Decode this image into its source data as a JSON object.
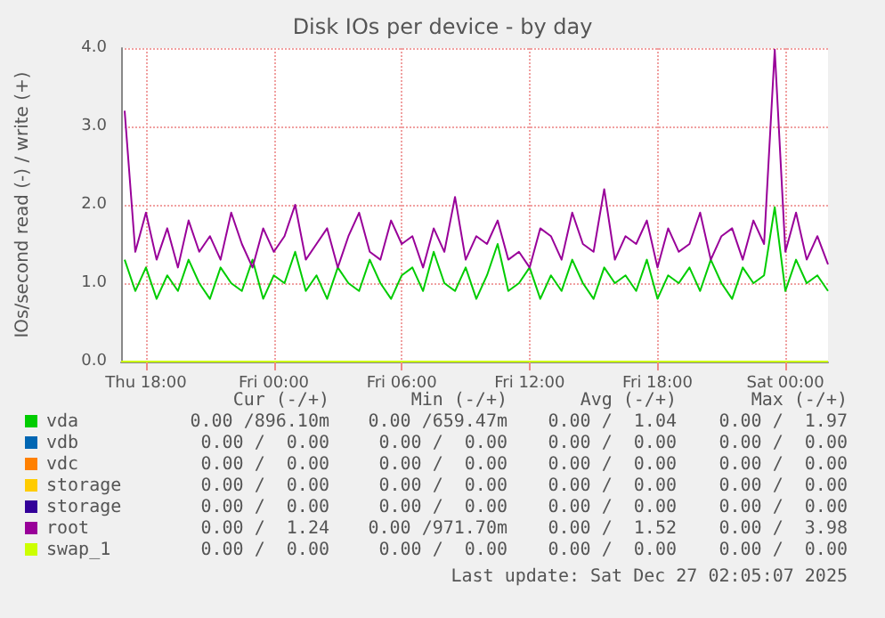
{
  "chart_data": {
    "type": "line",
    "title": "Disk IOs per device - by day",
    "ylabel": "IOs/second read (-) / write (+)",
    "xlim": [
      "2025-12-25T16:50",
      "2025-12-27T02:00"
    ],
    "xticks": [
      {
        "value": "2025-12-25T18:00",
        "label": "Thu 18:00"
      },
      {
        "value": "2025-12-26T00:00",
        "label": "Fri 00:00"
      },
      {
        "value": "2025-12-26T06:00",
        "label": "Fri 06:00"
      },
      {
        "value": "2025-12-26T12:00",
        "label": "Fri 12:00"
      },
      {
        "value": "2025-12-26T18:00",
        "label": "Fri 18:00"
      },
      {
        "value": "2025-12-27T00:00",
        "label": "Sat 00:00"
      }
    ],
    "ylim": [
      0,
      4
    ],
    "yticks": [
      {
        "value": 0,
        "label": "0.0"
      },
      {
        "value": 1,
        "label": "1.0"
      },
      {
        "value": 2,
        "label": "2.0"
      },
      {
        "value": 3,
        "label": "3.0"
      },
      {
        "value": 4,
        "label": "4.0"
      }
    ],
    "grid": true,
    "legend": "bottom",
    "marker": "none",
    "line_style": "solid",
    "series": [
      {
        "name": "vda",
        "color": "#00cc00",
        "x": [
          "2025-12-25T17:00",
          "2025-12-25T17:30",
          "2025-12-25T18:00",
          "2025-12-25T18:30",
          "2025-12-25T19:00",
          "2025-12-25T19:30",
          "2025-12-25T20:00",
          "2025-12-25T20:30",
          "2025-12-25T21:00",
          "2025-12-25T21:30",
          "2025-12-25T22:00",
          "2025-12-25T22:30",
          "2025-12-25T23:00",
          "2025-12-25T23:30",
          "2025-12-26T00:00",
          "2025-12-26T00:30",
          "2025-12-26T01:00",
          "2025-12-26T01:30",
          "2025-12-26T02:00",
          "2025-12-26T02:30",
          "2025-12-26T03:00",
          "2025-12-26T03:30",
          "2025-12-26T04:00",
          "2025-12-26T04:30",
          "2025-12-26T05:00",
          "2025-12-26T05:30",
          "2025-12-26T06:00",
          "2025-12-26T06:30",
          "2025-12-26T07:00",
          "2025-12-26T07:30",
          "2025-12-26T08:00",
          "2025-12-26T08:30",
          "2025-12-26T09:00",
          "2025-12-26T09:30",
          "2025-12-26T10:00",
          "2025-12-26T10:30",
          "2025-12-26T11:00",
          "2025-12-26T11:30",
          "2025-12-26T12:00",
          "2025-12-26T12:30",
          "2025-12-26T13:00",
          "2025-12-26T13:30",
          "2025-12-26T14:00",
          "2025-12-26T14:30",
          "2025-12-26T15:00",
          "2025-12-26T15:30",
          "2025-12-26T16:00",
          "2025-12-26T16:30",
          "2025-12-26T17:00",
          "2025-12-26T17:30",
          "2025-12-26T18:00",
          "2025-12-26T18:30",
          "2025-12-26T19:00",
          "2025-12-26T19:30",
          "2025-12-26T20:00",
          "2025-12-26T20:30",
          "2025-12-26T21:00",
          "2025-12-26T21:30",
          "2025-12-26T22:00",
          "2025-12-26T22:30",
          "2025-12-26T23:00",
          "2025-12-26T23:30",
          "2025-12-27T00:00",
          "2025-12-27T00:30",
          "2025-12-27T01:00",
          "2025-12-27T01:30",
          "2025-12-27T02:00"
        ],
        "values": [
          1.3,
          0.9,
          1.2,
          0.8,
          1.1,
          0.9,
          1.3,
          1.0,
          0.8,
          1.2,
          1.0,
          0.9,
          1.3,
          0.8,
          1.1,
          1.0,
          1.4,
          0.9,
          1.1,
          0.8,
          1.2,
          1.0,
          0.9,
          1.3,
          1.0,
          0.8,
          1.1,
          1.2,
          0.9,
          1.4,
          1.0,
          0.9,
          1.2,
          0.8,
          1.1,
          1.5,
          0.9,
          1.0,
          1.2,
          0.8,
          1.1,
          0.9,
          1.3,
          1.0,
          0.8,
          1.2,
          1.0,
          1.1,
          0.9,
          1.3,
          0.8,
          1.1,
          1.0,
          1.2,
          0.9,
          1.3,
          1.0,
          0.8,
          1.2,
          1.0,
          1.1,
          1.97,
          0.9,
          1.3,
          1.0,
          1.1,
          0.9
        ]
      },
      {
        "name": "vdb",
        "color": "#0066b3"
      },
      {
        "name": "vdc",
        "color": "#ff8000"
      },
      {
        "name": "storage",
        "color": "#ffcc00"
      },
      {
        "name": "storage",
        "color": "#330099"
      },
      {
        "name": "root",
        "color": "#990099",
        "x": [
          "2025-12-25T17:00",
          "2025-12-25T17:30",
          "2025-12-25T18:00",
          "2025-12-25T18:30",
          "2025-12-25T19:00",
          "2025-12-25T19:30",
          "2025-12-25T20:00",
          "2025-12-25T20:30",
          "2025-12-25T21:00",
          "2025-12-25T21:30",
          "2025-12-25T22:00",
          "2025-12-25T22:30",
          "2025-12-25T23:00",
          "2025-12-25T23:30",
          "2025-12-26T00:00",
          "2025-12-26T00:30",
          "2025-12-26T01:00",
          "2025-12-26T01:30",
          "2025-12-26T02:00",
          "2025-12-26T02:30",
          "2025-12-26T03:00",
          "2025-12-26T03:30",
          "2025-12-26T04:00",
          "2025-12-26T04:30",
          "2025-12-26T05:00",
          "2025-12-26T05:30",
          "2025-12-26T06:00",
          "2025-12-26T06:30",
          "2025-12-26T07:00",
          "2025-12-26T07:30",
          "2025-12-26T08:00",
          "2025-12-26T08:30",
          "2025-12-26T09:00",
          "2025-12-26T09:30",
          "2025-12-26T10:00",
          "2025-12-26T10:30",
          "2025-12-26T11:00",
          "2025-12-26T11:30",
          "2025-12-26T12:00",
          "2025-12-26T12:30",
          "2025-12-26T13:00",
          "2025-12-26T13:30",
          "2025-12-26T14:00",
          "2025-12-26T14:30",
          "2025-12-26T15:00",
          "2025-12-26T15:30",
          "2025-12-26T16:00",
          "2025-12-26T16:30",
          "2025-12-26T17:00",
          "2025-12-26T17:30",
          "2025-12-26T18:00",
          "2025-12-26T18:30",
          "2025-12-26T19:00",
          "2025-12-26T19:30",
          "2025-12-26T20:00",
          "2025-12-26T20:30",
          "2025-12-26T21:00",
          "2025-12-26T21:30",
          "2025-12-26T22:00",
          "2025-12-26T22:30",
          "2025-12-26T23:00",
          "2025-12-26T23:30",
          "2025-12-27T00:00",
          "2025-12-27T00:30",
          "2025-12-27T01:00",
          "2025-12-27T01:30",
          "2025-12-27T02:00"
        ],
        "values": [
          3.2,
          1.4,
          1.9,
          1.3,
          1.7,
          1.2,
          1.8,
          1.4,
          1.6,
          1.3,
          1.9,
          1.5,
          1.2,
          1.7,
          1.4,
          1.6,
          2.0,
          1.3,
          1.5,
          1.7,
          1.2,
          1.6,
          1.9,
          1.4,
          1.3,
          1.8,
          1.5,
          1.6,
          1.2,
          1.7,
          1.4,
          2.1,
          1.3,
          1.6,
          1.5,
          1.8,
          1.3,
          1.4,
          1.2,
          1.7,
          1.6,
          1.3,
          1.9,
          1.5,
          1.4,
          2.2,
          1.3,
          1.6,
          1.5,
          1.8,
          1.2,
          1.7,
          1.4,
          1.5,
          1.9,
          1.3,
          1.6,
          1.7,
          1.3,
          1.8,
          1.5,
          3.98,
          1.4,
          1.9,
          1.3,
          1.6,
          1.24
        ]
      },
      {
        "name": "swap_1",
        "color": "#ccff00",
        "x": [
          "2025-12-25T16:50",
          "2025-12-27T02:00"
        ],
        "values": [
          0,
          0
        ]
      }
    ],
    "annotations": [
      "Cur (-/+)",
      "Min (-/+)",
      "Avg (-/+)",
      "Max (-/+)",
      "0.00 /896.10m",
      "0.00 /659.47m",
      "0.00 /  1.04",
      "0.00 /  1.97",
      "0.00 /  0.00",
      "0.00 /  0.00",
      "0.00 /  0.00",
      "0.00 /  0.00",
      "0.00 /  0.00",
      "0.00 /  0.00",
      "0.00 /  0.00",
      "0.00 /  0.00",
      "0.00 /  0.00",
      "0.00 /  0.00",
      "0.00 /  0.00",
      "0.00 /  0.00",
      "0.00 /  0.00",
      "0.00 /  0.00",
      "0.00 /  0.00",
      "0.00 /  0.00",
      "0.00 /  1.24",
      "0.00 /971.70m",
      "0.00 /  1.52",
      "0.00 /  3.98",
      "0.00 /  0.00",
      "0.00 /  0.00",
      "0.00 /  0.00",
      "0.00 /  0.00",
      "Last update: Sat Dec 27 02:05:07 2025"
    ]
  }
}
